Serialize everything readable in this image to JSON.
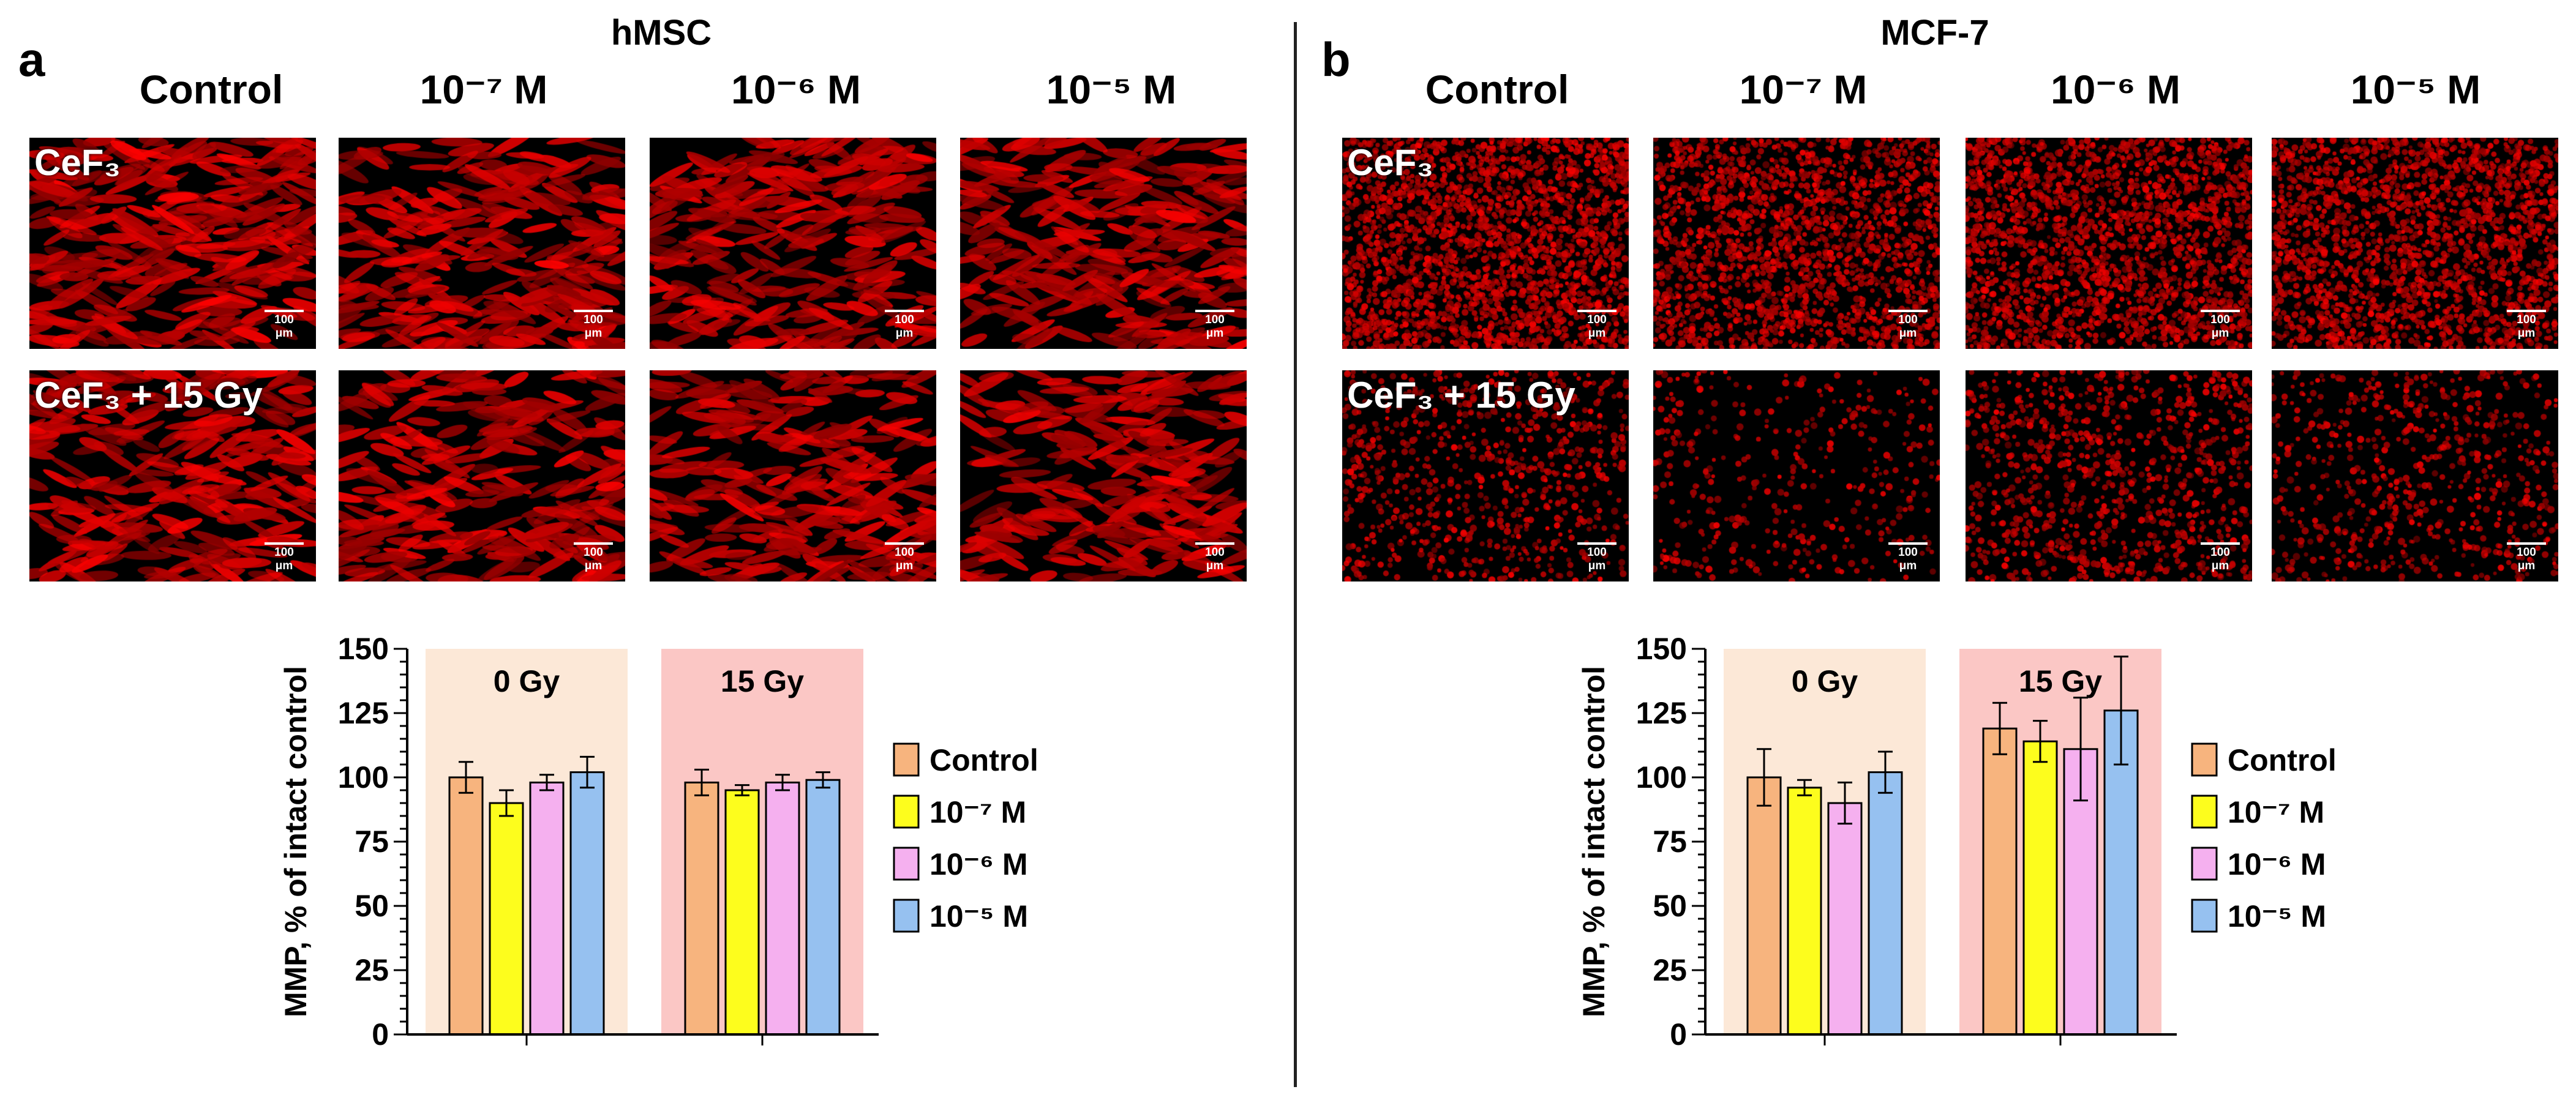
{
  "panels": [
    {
      "id": "a",
      "letter": "a",
      "cell_line": "hMSC",
      "columns": [
        "Control",
        "10⁻⁷ M",
        "10⁻⁶ M",
        "10⁻⁵ M"
      ],
      "rows": [
        "CeF₃",
        "CeF₃ + 15 Gy"
      ],
      "scale_label": "100 μm",
      "densities": [
        [
          0.55,
          0.5,
          0.5,
          0.5
        ],
        [
          0.5,
          0.45,
          0.45,
          0.45
        ]
      ],
      "chart_data": {
        "type": "bar",
        "ylabel": "MMP, % of intact control",
        "ylim": [
          0,
          150
        ],
        "yticks": [
          0,
          25,
          50,
          75,
          100,
          125,
          150
        ],
        "groups": [
          "0 Gy",
          "15 Gy"
        ],
        "group_colors": [
          "#fce8d7",
          "#fbc7c5"
        ],
        "series": [
          {
            "name": "Control",
            "color": "#f7b47e",
            "values": [
              100,
              98
            ],
            "errors": [
              6,
              5
            ]
          },
          {
            "name": "10⁻⁷ M",
            "color": "#fdfd1d",
            "values": [
              90,
              95
            ],
            "errors": [
              5,
              2
            ]
          },
          {
            "name": "10⁻⁶ M",
            "color": "#f5b0ef",
            "values": [
              98,
              98
            ],
            "errors": [
              3,
              3
            ]
          },
          {
            "name": "10⁻⁵ M",
            "color": "#96c1f0",
            "values": [
              102,
              99
            ],
            "errors": [
              6,
              3
            ]
          }
        ]
      }
    },
    {
      "id": "b",
      "letter": "b",
      "cell_line": "MCF-7",
      "columns": [
        "Control",
        "10⁻⁷ M",
        "10⁻⁶ M",
        "10⁻⁵ M"
      ],
      "rows": [
        "CeF₃",
        "CeF₃ + 15 Gy"
      ],
      "scale_label": "100 μm",
      "densities": [
        [
          0.85,
          0.7,
          0.75,
          0.75
        ],
        [
          0.3,
          0.15,
          0.35,
          0.25
        ]
      ],
      "chart_data": {
        "type": "bar",
        "ylabel": "MMP, % of intact control",
        "ylim": [
          0,
          150
        ],
        "yticks": [
          0,
          25,
          50,
          75,
          100,
          125,
          150
        ],
        "groups": [
          "0 Gy",
          "15 Gy"
        ],
        "group_colors": [
          "#fce8d7",
          "#fbc7c5"
        ],
        "series": [
          {
            "name": "Control",
            "color": "#f7b47e",
            "values": [
              100,
              119
            ],
            "errors": [
              11,
              10
            ]
          },
          {
            "name": "10⁻⁷ M",
            "color": "#fdfd1d",
            "values": [
              96,
              114
            ],
            "errors": [
              3,
              8
            ]
          },
          {
            "name": "10⁻⁶ M",
            "color": "#f5b0ef",
            "values": [
              90,
              111
            ],
            "errors": [
              8,
              20
            ]
          },
          {
            "name": "10⁻⁵ M",
            "color": "#96c1f0",
            "values": [
              102,
              126
            ],
            "errors": [
              8,
              21
            ]
          }
        ]
      }
    }
  ]
}
